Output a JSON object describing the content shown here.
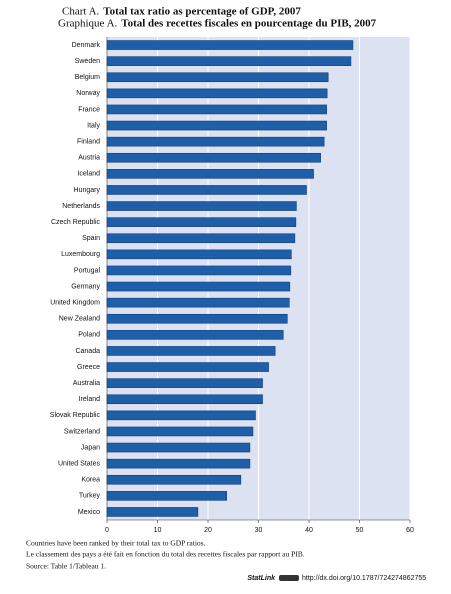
{
  "chart_data": {
    "type": "bar",
    "orientation": "horizontal",
    "titles": [
      {
        "label": "Chart A.",
        "text": "Total tax ratio as percentage of GDP, 2007"
      },
      {
        "label": "Graphique A.",
        "text": "Total des recettes fiscales en pourcentage du PIB, 2007"
      }
    ],
    "categories": [
      "Denmark",
      "Sweden",
      "Belgium",
      "Norway",
      "France",
      "Italy",
      "Finland",
      "Austria",
      "Iceland",
      "Hungary",
      "Netherlands",
      "Czech Republic",
      "Spain",
      "Luxembourg",
      "Portugal",
      "Germany",
      "United Kingdom",
      "New Zealand",
      "Poland",
      "Canada",
      "Greece",
      "Australia",
      "Ireland",
      "Slovak Republic",
      "Switzerland",
      "Japan",
      "United States",
      "Korea",
      "Turkey",
      "Mexico"
    ],
    "values": [
      48.7,
      48.3,
      43.8,
      43.6,
      43.5,
      43.5,
      43.0,
      42.3,
      40.9,
      39.5,
      37.5,
      37.4,
      37.2,
      36.5,
      36.4,
      36.2,
      36.1,
      35.7,
      34.9,
      33.3,
      32.0,
      30.8,
      30.8,
      29.4,
      28.9,
      28.3,
      28.3,
      26.5,
      23.7,
      18.0
    ],
    "color": "#1f5ea8",
    "xlim": [
      0,
      60
    ],
    "xticks": [
      0,
      10,
      20,
      30,
      40,
      50,
      60
    ],
    "grid": true,
    "notes": [
      "Countries have been ranked by their total tax to GDP ratios.",
      "Le classement des pays a été fait en fonction du total des recettes fiscales par rapport au PIB."
    ],
    "source": "Source:  Table 1/Tableau 1.",
    "statlink": {
      "label": "StatLink",
      "url": "http://dx.doi.org/10.1787/724274862755"
    }
  }
}
